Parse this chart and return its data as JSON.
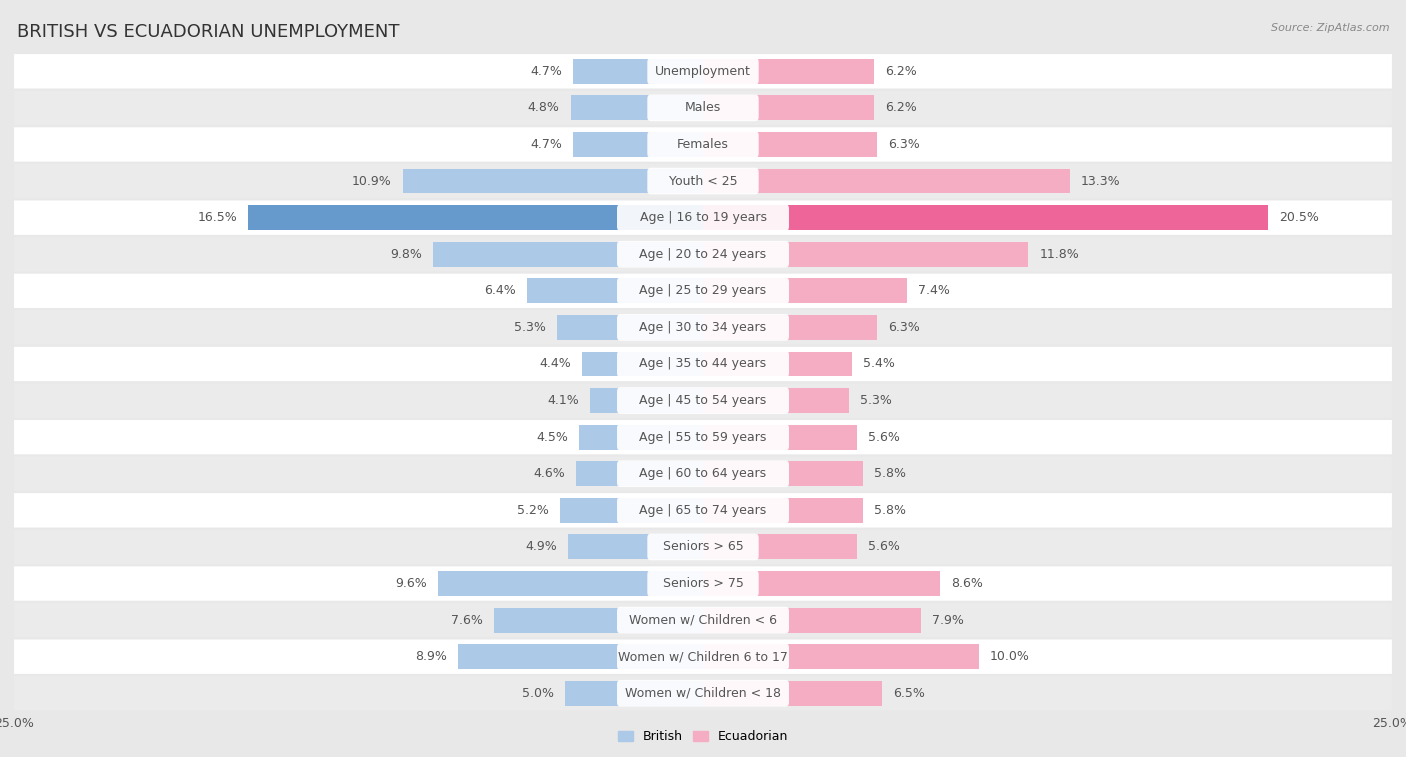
{
  "title": "BRITISH VS ECUADORIAN UNEMPLOYMENT",
  "source": "Source: ZipAtlas.com",
  "categories": [
    "Unemployment",
    "Males",
    "Females",
    "Youth < 25",
    "Age | 16 to 19 years",
    "Age | 20 to 24 years",
    "Age | 25 to 29 years",
    "Age | 30 to 34 years",
    "Age | 35 to 44 years",
    "Age | 45 to 54 years",
    "Age | 55 to 59 years",
    "Age | 60 to 64 years",
    "Age | 65 to 74 years",
    "Seniors > 65",
    "Seniors > 75",
    "Women w/ Children < 6",
    "Women w/ Children 6 to 17",
    "Women w/ Children < 18"
  ],
  "british": [
    4.7,
    4.8,
    4.7,
    10.9,
    16.5,
    9.8,
    6.4,
    5.3,
    4.4,
    4.1,
    4.5,
    4.6,
    5.2,
    4.9,
    9.6,
    7.6,
    8.9,
    5.0
  ],
  "ecuadorian": [
    6.2,
    6.2,
    6.3,
    13.3,
    20.5,
    11.8,
    7.4,
    6.3,
    5.4,
    5.3,
    5.6,
    5.8,
    5.8,
    5.6,
    8.6,
    7.9,
    10.0,
    6.5
  ],
  "british_color": "#adc9e8",
  "ecuadorian_color": "#f5adc4",
  "british_highlight": "#6699cc",
  "ecuadorian_highlight": "#ee6699",
  "row_color_even": "#ffffff",
  "row_color_odd": "#ebebeb",
  "background_color": "#e8e8e8",
  "font_color": "#555555",
  "label_fontsize": 9.0,
  "category_fontsize": 9.0,
  "title_fontsize": 13,
  "axis_limit": 25.0,
  "bar_height": 0.68
}
